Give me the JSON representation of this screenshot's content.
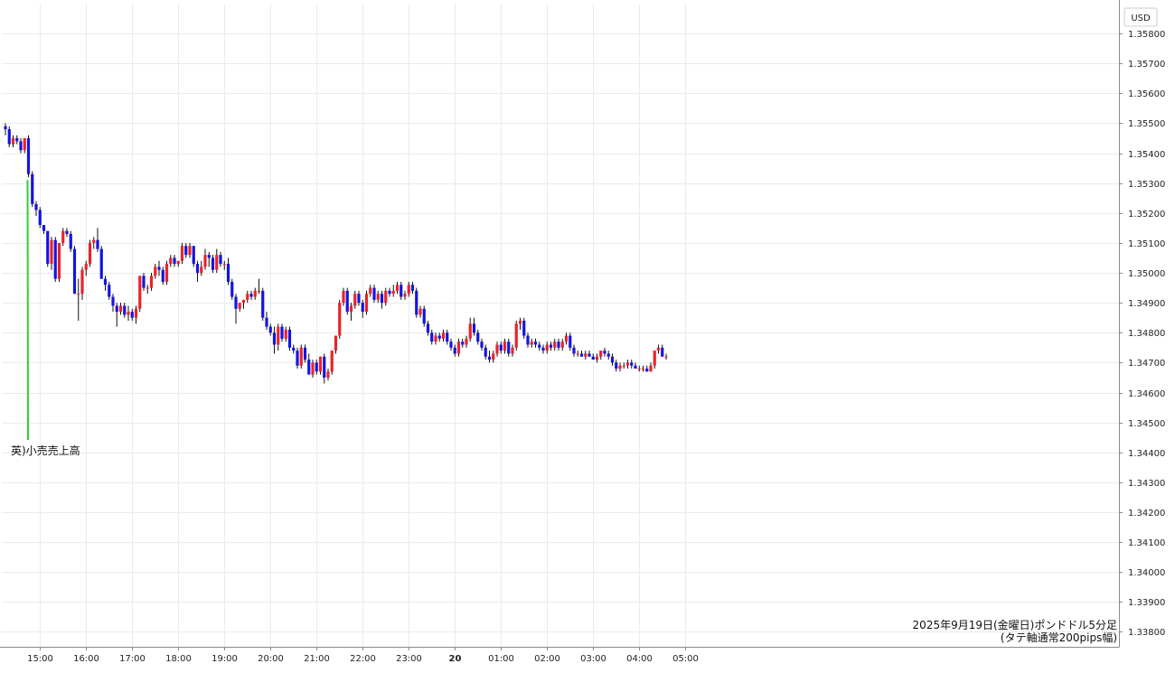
{
  "chart_data": {
    "type": "candlestick",
    "title": "2025年9月19日(金曜日)ポンドドル5分足",
    "subtitle": "(タテ軸通常200pips幅)",
    "y_unit": "USD",
    "ylim": [
      1.3375,
      1.359
    ],
    "y_ticks": [
      "1.35800",
      "1.35700",
      "1.35600",
      "1.35500",
      "1.35400",
      "1.35300",
      "1.35200",
      "1.35100",
      "1.35000",
      "1.34900",
      "1.34800",
      "1.34700",
      "1.34600",
      "1.34500",
      "1.34400",
      "1.34300",
      "1.34200",
      "1.34100",
      "1.34000",
      "1.33900",
      "1.33800"
    ],
    "x_ticks": [
      {
        "label": "15:00",
        "index": 9,
        "bold": false
      },
      {
        "label": "16:00",
        "index": 21,
        "bold": false
      },
      {
        "label": "17:00",
        "index": 33,
        "bold": false
      },
      {
        "label": "18:00",
        "index": 45,
        "bold": false
      },
      {
        "label": "19:00",
        "index": 57,
        "bold": false
      },
      {
        "label": "20:00",
        "index": 69,
        "bold": false
      },
      {
        "label": "21:00",
        "index": 81,
        "bold": false
      },
      {
        "label": "22:00",
        "index": 93,
        "bold": false
      },
      {
        "label": "23:00",
        "index": 105,
        "bold": false
      },
      {
        "label": "20",
        "index": 117,
        "bold": true
      },
      {
        "label": "01:00",
        "index": 129,
        "bold": false
      },
      {
        "label": "02:00",
        "index": 141,
        "bold": false
      },
      {
        "label": "03:00",
        "index": 153,
        "bold": false
      },
      {
        "label": "04:00",
        "index": 165,
        "bold": false
      },
      {
        "label": "05:00",
        "index": 177,
        "bold": false
      }
    ],
    "grid": true,
    "up_color": "#e8242a",
    "down_color": "#1414e0",
    "annotation": {
      "text": "英)小売売上高",
      "index": 6,
      "price": 1.3531,
      "color": "#33cc33"
    },
    "candles": [
      [
        1.3549,
        1.355,
        1.3546,
        1.3548
      ],
      [
        1.3548,
        1.3549,
        1.3542,
        1.3543
      ],
      [
        1.3543,
        1.3546,
        1.3542,
        1.3545
      ],
      [
        1.3545,
        1.3546,
        1.3543,
        1.3544
      ],
      [
        1.3544,
        1.3545,
        1.354,
        1.3541
      ],
      [
        1.3541,
        1.3545,
        1.354,
        1.3545
      ],
      [
        1.3545,
        1.3546,
        1.3532,
        1.3533
      ],
      [
        1.3533,
        1.3534,
        1.3522,
        1.3523
      ],
      [
        1.3523,
        1.3524,
        1.3519,
        1.3521
      ],
      [
        1.3521,
        1.3522,
        1.3515,
        1.3516
      ],
      [
        1.3516,
        1.3516,
        1.3513,
        1.3514
      ],
      [
        1.3514,
        1.3514,
        1.3502,
        1.3503
      ],
      [
        1.3503,
        1.3512,
        1.3501,
        1.3511
      ],
      [
        1.3511,
        1.3512,
        1.3497,
        1.3498
      ],
      [
        1.3498,
        1.351,
        1.3497,
        1.351
      ],
      [
        1.351,
        1.3515,
        1.3509,
        1.3514
      ],
      [
        1.3514,
        1.3515,
        1.3512,
        1.3513
      ],
      [
        1.3513,
        1.3514,
        1.3507,
        1.3508
      ],
      [
        1.3508,
        1.3509,
        1.3493,
        1.3493
      ],
      [
        1.3493,
        1.3498,
        1.3484,
        1.3493
      ],
      [
        1.3493,
        1.3502,
        1.3491,
        1.3501
      ],
      [
        1.3501,
        1.3504,
        1.3499,
        1.3503
      ],
      [
        1.3503,
        1.3511,
        1.3502,
        1.351
      ],
      [
        1.351,
        1.3512,
        1.3508,
        1.3511
      ],
      [
        1.3511,
        1.3515,
        1.3507,
        1.3508
      ],
      [
        1.3508,
        1.3509,
        1.3498,
        1.3498
      ],
      [
        1.3498,
        1.3499,
        1.3494,
        1.3496
      ],
      [
        1.3496,
        1.3497,
        1.3491,
        1.3492
      ],
      [
        1.3492,
        1.3493,
        1.3487,
        1.3489
      ],
      [
        1.3489,
        1.349,
        1.3482,
        1.3487
      ],
      [
        1.3487,
        1.349,
        1.3486,
        1.3489
      ],
      [
        1.3489,
        1.349,
        1.3485,
        1.3486
      ],
      [
        1.3486,
        1.3489,
        1.3484,
        1.3487
      ],
      [
        1.3487,
        1.3488,
        1.3484,
        1.3485
      ],
      [
        1.3485,
        1.3489,
        1.3483,
        1.3488
      ],
      [
        1.3488,
        1.3499,
        1.3487,
        1.3499
      ],
      [
        1.3499,
        1.35,
        1.3494,
        1.3495
      ],
      [
        1.3495,
        1.3496,
        1.3493,
        1.3495
      ],
      [
        1.3495,
        1.35,
        1.3494,
        1.3499
      ],
      [
        1.3499,
        1.3503,
        1.3498,
        1.3502
      ],
      [
        1.3502,
        1.3504,
        1.3499,
        1.3501
      ],
      [
        1.3501,
        1.3502,
        1.3496,
        1.3497
      ],
      [
        1.3497,
        1.3504,
        1.3496,
        1.3503
      ],
      [
        1.3503,
        1.3506,
        1.3502,
        1.3505
      ],
      [
        1.3505,
        1.3506,
        1.3502,
        1.3503
      ],
      [
        1.3503,
        1.3504,
        1.3502,
        1.3504
      ],
      [
        1.3504,
        1.351,
        1.3503,
        1.3509
      ],
      [
        1.3509,
        1.351,
        1.3505,
        1.3506
      ],
      [
        1.3506,
        1.351,
        1.3505,
        1.3509
      ],
      [
        1.3509,
        1.3509,
        1.3502,
        1.3503
      ],
      [
        1.3503,
        1.3504,
        1.3497,
        1.35
      ],
      [
        1.35,
        1.3504,
        1.3499,
        1.3502
      ],
      [
        1.3502,
        1.3508,
        1.3501,
        1.3506
      ],
      [
        1.3506,
        1.3507,
        1.3502,
        1.3505
      ],
      [
        1.3505,
        1.3506,
        1.35,
        1.3501
      ],
      [
        1.3501,
        1.3508,
        1.35,
        1.3506
      ],
      [
        1.3506,
        1.3507,
        1.3502,
        1.3503
      ],
      [
        1.3503,
        1.3504,
        1.3501,
        1.3503
      ],
      [
        1.3503,
        1.3505,
        1.3496,
        1.3497
      ],
      [
        1.3497,
        1.3498,
        1.3491,
        1.3492
      ],
      [
        1.3492,
        1.3493,
        1.3483,
        1.3488
      ],
      [
        1.3488,
        1.349,
        1.3487,
        1.349
      ],
      [
        1.349,
        1.3491,
        1.3488,
        1.3491
      ],
      [
        1.3491,
        1.3494,
        1.349,
        1.3493
      ],
      [
        1.3493,
        1.3494,
        1.3491,
        1.3492
      ],
      [
        1.3492,
        1.3495,
        1.3491,
        1.3494
      ],
      [
        1.3494,
        1.3498,
        1.3493,
        1.3494
      ],
      [
        1.3494,
        1.3495,
        1.3484,
        1.3485
      ],
      [
        1.3485,
        1.3487,
        1.3481,
        1.3482
      ],
      [
        1.3482,
        1.3483,
        1.3479,
        1.348
      ],
      [
        1.348,
        1.3482,
        1.3473,
        1.3476
      ],
      [
        1.3476,
        1.3483,
        1.3474,
        1.3482
      ],
      [
        1.3482,
        1.3483,
        1.3477,
        1.3478
      ],
      [
        1.3478,
        1.3482,
        1.3477,
        1.3481
      ],
      [
        1.3481,
        1.3482,
        1.3474,
        1.3475
      ],
      [
        1.3475,
        1.3476,
        1.3473,
        1.3474
      ],
      [
        1.3474,
        1.3475,
        1.3468,
        1.3469
      ],
      [
        1.3469,
        1.3476,
        1.3468,
        1.3475
      ],
      [
        1.3475,
        1.3476,
        1.347,
        1.3471
      ],
      [
        1.3471,
        1.3473,
        1.3466,
        1.3466
      ],
      [
        1.3466,
        1.3471,
        1.3465,
        1.347
      ],
      [
        1.347,
        1.3471,
        1.3466,
        1.3467
      ],
      [
        1.3467,
        1.3472,
        1.3466,
        1.3472
      ],
      [
        1.3472,
        1.3473,
        1.3463,
        1.3465
      ],
      [
        1.3465,
        1.3468,
        1.3464,
        1.3467
      ],
      [
        1.3467,
        1.3474,
        1.3466,
        1.3474
      ],
      [
        1.3474,
        1.3479,
        1.3473,
        1.3479
      ],
      [
        1.3479,
        1.3491,
        1.3478,
        1.349
      ],
      [
        1.349,
        1.3495,
        1.3489,
        1.3494
      ],
      [
        1.3494,
        1.3495,
        1.3486,
        1.3487
      ],
      [
        1.3487,
        1.349,
        1.3484,
        1.3489
      ],
      [
        1.3489,
        1.3494,
        1.3488,
        1.3493
      ],
      [
        1.3493,
        1.3494,
        1.3489,
        1.349
      ],
      [
        1.349,
        1.3491,
        1.3485,
        1.3487
      ],
      [
        1.3487,
        1.3494,
        1.3486,
        1.3493
      ],
      [
        1.3493,
        1.3496,
        1.3492,
        1.3495
      ],
      [
        1.3495,
        1.3496,
        1.349,
        1.3491
      ],
      [
        1.3491,
        1.3494,
        1.349,
        1.3493
      ],
      [
        1.3493,
        1.3494,
        1.3488,
        1.349
      ],
      [
        1.349,
        1.3495,
        1.3489,
        1.3494
      ],
      [
        1.3494,
        1.3495,
        1.3492,
        1.3493
      ],
      [
        1.3493,
        1.3496,
        1.3492,
        1.3494
      ],
      [
        1.3494,
        1.3497,
        1.3493,
        1.3496
      ],
      [
        1.3496,
        1.3497,
        1.3491,
        1.3492
      ],
      [
        1.3492,
        1.3494,
        1.3491,
        1.3493
      ],
      [
        1.3493,
        1.3497,
        1.3492,
        1.3496
      ],
      [
        1.3496,
        1.3497,
        1.3493,
        1.3494
      ],
      [
        1.3494,
        1.3495,
        1.3485,
        1.3486
      ],
      [
        1.3486,
        1.3489,
        1.3485,
        1.3488
      ],
      [
        1.3488,
        1.3489,
        1.3482,
        1.3483
      ],
      [
        1.3483,
        1.3484,
        1.3479,
        1.348
      ],
      [
        1.348,
        1.3481,
        1.3476,
        1.3477
      ],
      [
        1.3477,
        1.348,
        1.3476,
        1.3479
      ],
      [
        1.3479,
        1.348,
        1.3477,
        1.3478
      ],
      [
        1.3478,
        1.3481,
        1.3477,
        1.348
      ],
      [
        1.348,
        1.3481,
        1.3476,
        1.3477
      ],
      [
        1.3477,
        1.3478,
        1.3474,
        1.3475
      ],
      [
        1.3475,
        1.3476,
        1.3472,
        1.3473
      ],
      [
        1.3473,
        1.3478,
        1.3472,
        1.3477
      ],
      [
        1.3477,
        1.3478,
        1.3475,
        1.3476
      ],
      [
        1.3476,
        1.3479,
        1.3475,
        1.3478
      ],
      [
        1.3478,
        1.3485,
        1.3477,
        1.3483
      ],
      [
        1.3483,
        1.3485,
        1.3479,
        1.348
      ],
      [
        1.348,
        1.3481,
        1.3476,
        1.3477
      ],
      [
        1.3477,
        1.3478,
        1.3474,
        1.3475
      ],
      [
        1.3475,
        1.3476,
        1.3471,
        1.3472
      ],
      [
        1.3472,
        1.3474,
        1.347,
        1.3471
      ],
      [
        1.3471,
        1.3474,
        1.347,
        1.3473
      ],
      [
        1.3473,
        1.3477,
        1.3472,
        1.3476
      ],
      [
        1.3476,
        1.3477,
        1.3473,
        1.3474
      ],
      [
        1.3474,
        1.3478,
        1.3473,
        1.3477
      ],
      [
        1.3477,
        1.3478,
        1.3472,
        1.3473
      ],
      [
        1.3473,
        1.3476,
        1.3472,
        1.3475
      ],
      [
        1.3475,
        1.3484,
        1.3474,
        1.3483
      ],
      [
        1.3483,
        1.3485,
        1.3481,
        1.3484
      ],
      [
        1.3484,
        1.3485,
        1.3478,
        1.3479
      ],
      [
        1.3479,
        1.348,
        1.3475,
        1.3476
      ],
      [
        1.3476,
        1.3478,
        1.3475,
        1.3477
      ],
      [
        1.3477,
        1.3478,
        1.3475,
        1.3476
      ],
      [
        1.3476,
        1.3477,
        1.3474,
        1.3475
      ],
      [
        1.3475,
        1.3476,
        1.3473,
        1.3474
      ],
      [
        1.3474,
        1.3477,
        1.3473,
        1.3476
      ],
      [
        1.3476,
        1.3477,
        1.3474,
        1.3475
      ],
      [
        1.3475,
        1.3478,
        1.3474,
        1.3477
      ],
      [
        1.3477,
        1.3478,
        1.3474,
        1.3475
      ],
      [
        1.3475,
        1.3478,
        1.3474,
        1.3477
      ],
      [
        1.3477,
        1.348,
        1.3476,
        1.3479
      ],
      [
        1.3479,
        1.348,
        1.3474,
        1.3475
      ],
      [
        1.3475,
        1.3476,
        1.3472,
        1.3473
      ],
      [
        1.3473,
        1.3474,
        1.3472,
        1.3473
      ],
      [
        1.3473,
        1.3474,
        1.3472,
        1.3472
      ],
      [
        1.3472,
        1.3474,
        1.3471,
        1.3473
      ],
      [
        1.3473,
        1.3474,
        1.3472,
        1.3472
      ],
      [
        1.3472,
        1.3473,
        1.3471,
        1.3471
      ],
      [
        1.3471,
        1.3473,
        1.347,
        1.3472
      ],
      [
        1.3472,
        1.3474,
        1.3471,
        1.3474
      ],
      [
        1.3474,
        1.3475,
        1.3472,
        1.3473
      ],
      [
        1.3473,
        1.3474,
        1.3471,
        1.3472
      ],
      [
        1.3472,
        1.3473,
        1.3469,
        1.347
      ],
      [
        1.347,
        1.3471,
        1.3467,
        1.3468
      ],
      [
        1.3468,
        1.347,
        1.3467,
        1.3469
      ],
      [
        1.3469,
        1.347,
        1.3468,
        1.3469
      ],
      [
        1.3469,
        1.3471,
        1.3468,
        1.347
      ],
      [
        1.347,
        1.3471,
        1.3468,
        1.3469
      ],
      [
        1.3469,
        1.347,
        1.3468,
        1.3468
      ],
      [
        1.3468,
        1.3469,
        1.3467,
        1.3468
      ],
      [
        1.3468,
        1.3469,
        1.3467,
        1.3468
      ],
      [
        1.3468,
        1.3469,
        1.3467,
        1.3467
      ],
      [
        1.3467,
        1.347,
        1.3467,
        1.3469
      ],
      [
        1.3469,
        1.3474,
        1.3468,
        1.3474
      ],
      [
        1.3474,
        1.3476,
        1.3473,
        1.3475
      ],
      [
        1.3475,
        1.3476,
        1.3472,
        1.3472
      ],
      [
        1.3472,
        1.3473,
        1.3471,
        1.3472
      ]
    ]
  }
}
